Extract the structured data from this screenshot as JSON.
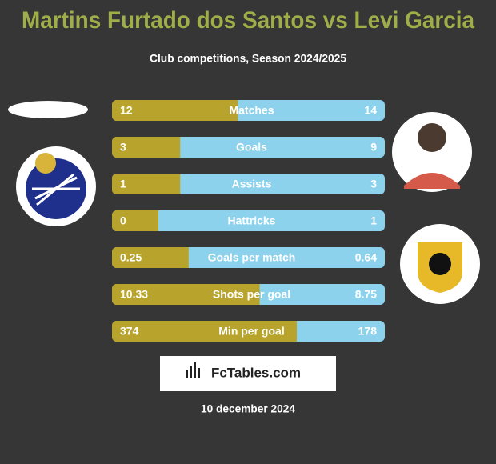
{
  "header": {
    "title": "Martins Furtado dos Santos vs Levi Garcia",
    "subtitle": "Club competitions, Season 2024/2025"
  },
  "rows": [
    {
      "label": "Matches",
      "left": 12,
      "right": 14
    },
    {
      "label": "Goals",
      "left": 3,
      "right": 9
    },
    {
      "label": "Assists",
      "left": 1,
      "right": 3
    },
    {
      "label": "Hattricks",
      "left": 0,
      "right": 1
    },
    {
      "label": "Goals per match",
      "left": 0.25,
      "right": 0.64
    },
    {
      "label": "Shots per goal",
      "left": 10.33,
      "right": 8.75
    },
    {
      "label": "Min per goal",
      "left": 374,
      "right": 178
    }
  ],
  "brand": "FcTables.com",
  "date": "10 december 2024"
}
